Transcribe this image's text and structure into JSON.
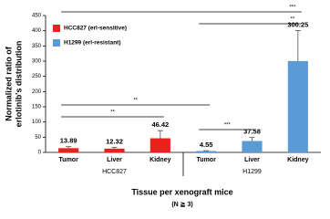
{
  "chart_data": {
    "type": "bar",
    "y_label_lines": [
      "Normalized ratio of",
      "erlotinib's distribution"
    ],
    "x_label": "Tissue per xenograft mice",
    "x_sublabel": "(N ≧ 3)",
    "categories": [
      "Tumor",
      "Liver",
      "Kidney",
      "Tumor",
      "Liver",
      "Kidney"
    ],
    "groups": [
      {
        "label": "HCC827",
        "from": 0,
        "to": 2
      },
      {
        "label": "H1299",
        "from": 3,
        "to": 5
      }
    ],
    "series": [
      {
        "name": "HCC827 (erl-sensitive)",
        "color": "#e8211c",
        "values": [
          13.89,
          12.32,
          46.42,
          null,
          null,
          null
        ],
        "errors": [
          5,
          4,
          25,
          null,
          null,
          null
        ]
      },
      {
        "name": "H1299 (erl-resistant)",
        "color": "#5b9bd5",
        "values": [
          null,
          null,
          null,
          4.55,
          37.58,
          300.25
        ],
        "errors": [
          null,
          null,
          null,
          1,
          12,
          100
        ]
      }
    ],
    "ylim": [
      0,
      450
    ],
    "yticks": [
      0,
      50,
      100,
      150,
      200,
      250,
      300,
      350,
      400,
      450
    ],
    "grid": false,
    "legend": "top-left",
    "significance": [
      {
        "from": 0,
        "to": 5,
        "label": "***"
      },
      {
        "from": 3,
        "to": 5,
        "label": "**"
      },
      {
        "from": 0,
        "to": 3,
        "label": "**"
      },
      {
        "from": 0,
        "to": 2,
        "label": "**"
      },
      {
        "from": 3,
        "to": 4,
        "label": "***"
      }
    ]
  }
}
